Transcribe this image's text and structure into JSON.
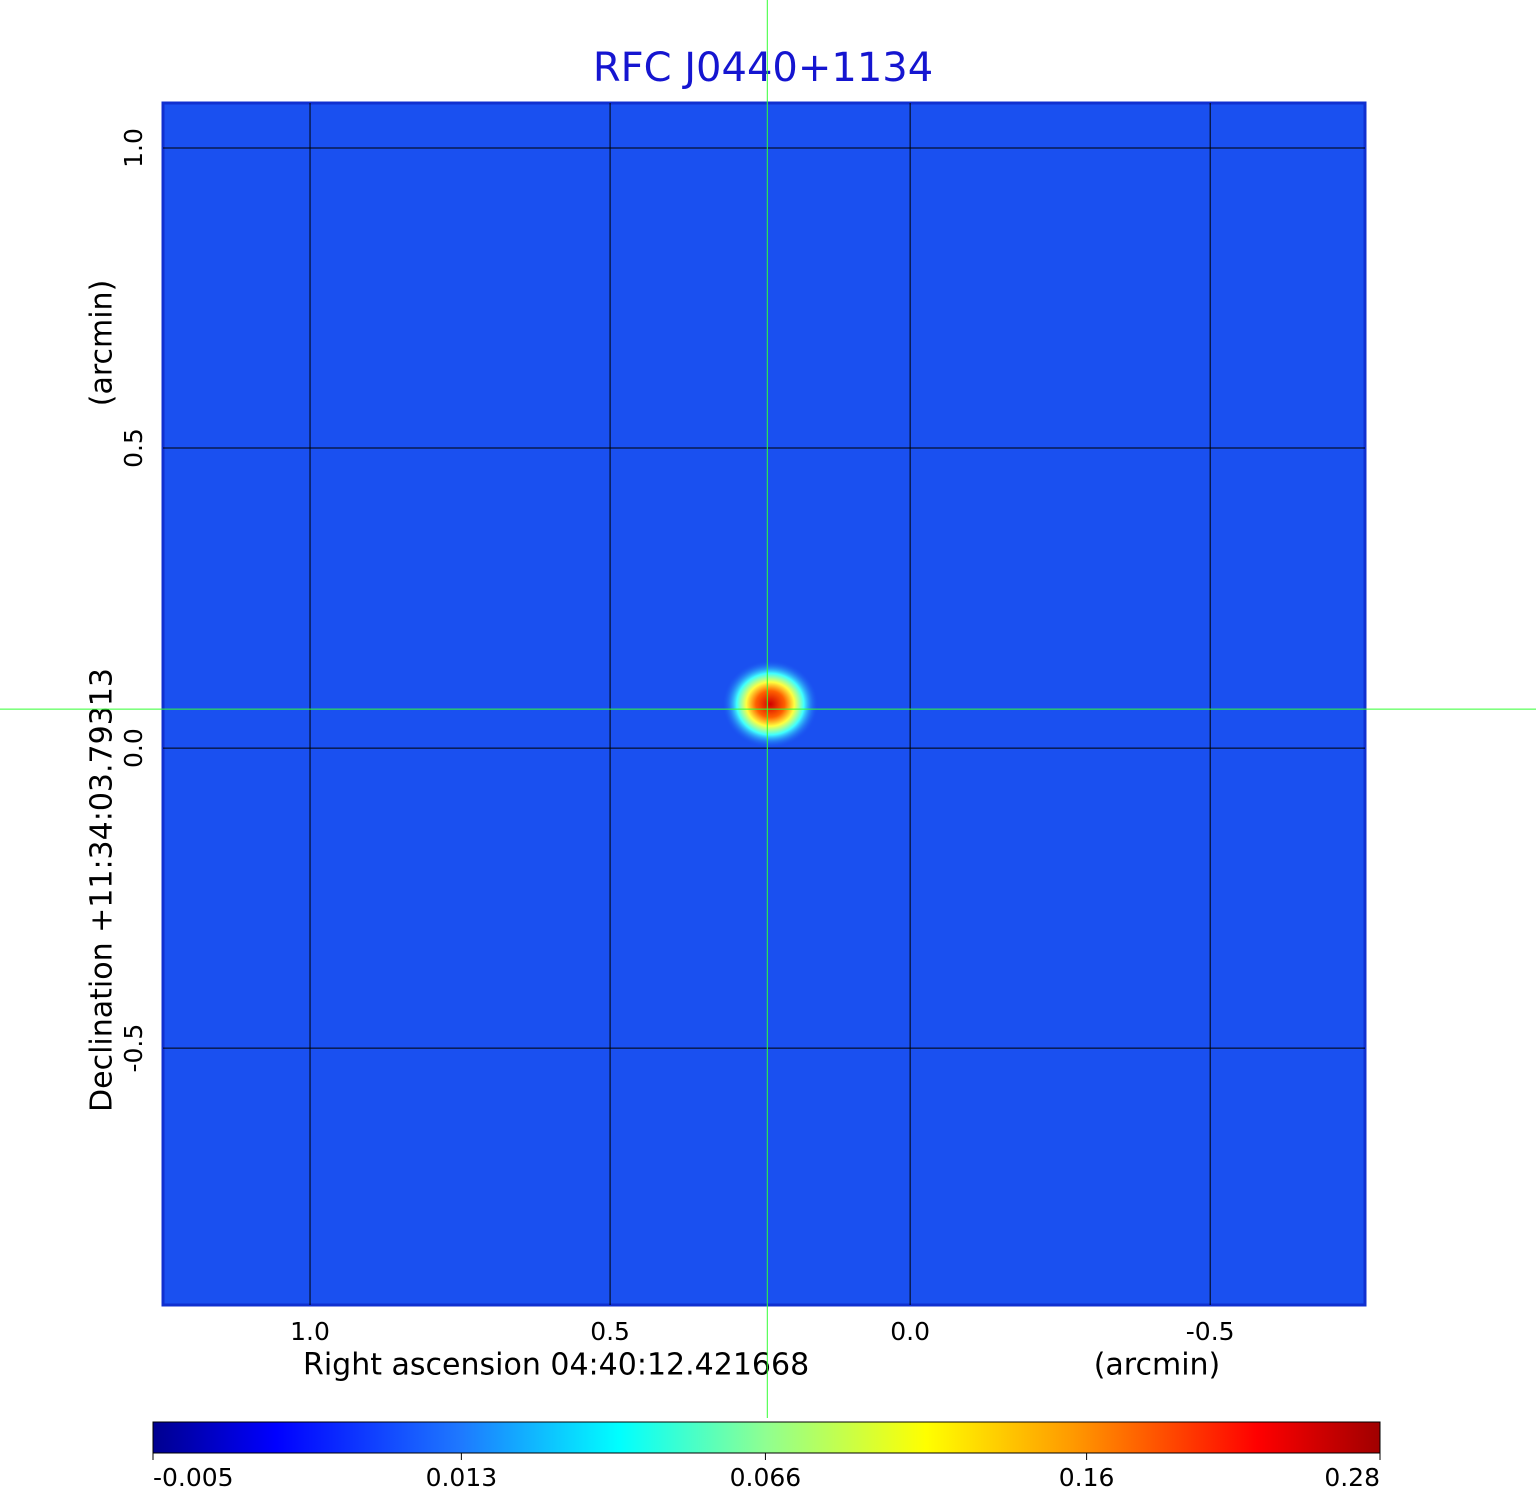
{
  "chart_data": {
    "type": "image",
    "title": "RFC J0440+1134",
    "xlabel": "Right ascension  04:40:12.421668",
    "xunit": "(arcmin)",
    "ylabel": "Declination  +11:34:03.79313",
    "yunit": "(arcmin)",
    "xlim": [
      1.245,
      -0.758
    ],
    "ylim": [
      -0.928,
      1.075
    ],
    "xticks": [
      {
        "value": 1,
        "label": "1.0"
      },
      {
        "value": 0.5,
        "label": "0.5"
      },
      {
        "value": 0,
        "label": "0.0"
      },
      {
        "value": -0.5,
        "label": "-0.5"
      }
    ],
    "yticks": [
      {
        "value": 1,
        "label": "1.0"
      },
      {
        "value": 0.5,
        "label": "0.5"
      },
      {
        "value": 0,
        "label": "0.0"
      },
      {
        "value": -0.5,
        "label": "-0.5"
      }
    ],
    "grid": true,
    "crosshair": {
      "x": 0.238,
      "y": 0.065,
      "color": "#33ff33"
    },
    "colorbar": {
      "lim": [
        -0.005,
        0.28
      ],
      "scale": "sqrt",
      "ticks": [
        -0.005,
        0.013,
        0.066,
        0.16,
        0.28
      ]
    }
  }
}
